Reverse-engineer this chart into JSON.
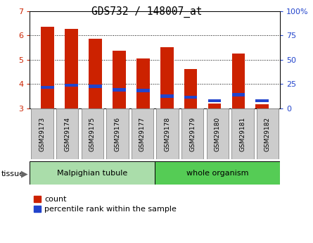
{
  "title": "GDS732 / 148007_at",
  "samples": [
    "GSM29173",
    "GSM29174",
    "GSM29175",
    "GSM29176",
    "GSM29177",
    "GSM29178",
    "GSM29179",
    "GSM29180",
    "GSM29181",
    "GSM29182"
  ],
  "red_values": [
    6.35,
    6.25,
    5.85,
    5.35,
    5.05,
    5.5,
    4.6,
    3.2,
    5.25,
    3.15
  ],
  "blue_values": [
    3.85,
    3.95,
    3.9,
    3.75,
    3.72,
    3.5,
    3.45,
    3.3,
    3.55,
    3.3
  ],
  "ylim_left": [
    3,
    7
  ],
  "yticks_left": [
    3,
    4,
    5,
    6,
    7
  ],
  "yticks_right": [
    0,
    25,
    50,
    75,
    100
  ],
  "ytick_labels_right": [
    "0",
    "25",
    "50",
    "75",
    "100%"
  ],
  "tissue_groups": [
    {
      "label": "Malpighian tubule",
      "start": 0,
      "end": 5,
      "color": "#aaddaa"
    },
    {
      "label": "whole organism",
      "start": 5,
      "end": 10,
      "color": "#55cc55"
    }
  ],
  "bar_width": 0.55,
  "red_color": "#cc2200",
  "blue_color": "#2244cc",
  "bar_bottom": 3.0,
  "blue_bar_height": 0.13,
  "tick_label_color_left": "#cc2200",
  "tick_label_color_right": "#2244cc",
  "legend_red_label": "count",
  "legend_blue_label": "percentile rank within the sample",
  "tissue_label": "tissue",
  "title_fontsize": 10.5,
  "axis_fontsize": 8,
  "legend_fontsize": 8,
  "sample_label_fontsize": 6.5,
  "gray_box_color": "#cccccc",
  "gray_box_edge": "#888888"
}
